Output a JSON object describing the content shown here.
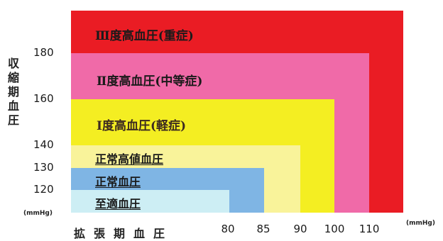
{
  "chart_data": {
    "type": "heatmap",
    "title": "",
    "ylabel": "収縮期血圧",
    "xlabel": "拡張期血圧",
    "y_unit": "(mmHg)",
    "x_unit": "(mmHg)",
    "y_ticks": [
      120,
      130,
      140,
      160,
      180
    ],
    "x_ticks": [
      80,
      85,
      90,
      100,
      110
    ],
    "categories": [
      {
        "name": "III度高血圧(重症)",
        "display": "Ⅲ度高血圧(重症)",
        "systolic_min": 180,
        "diastolic_min": 110,
        "color": "#ea1c24",
        "label_color": "#1a1a1a"
      },
      {
        "name": "II度高血圧(中等症)",
        "display": "Ⅱ度高血圧(中等症)",
        "systolic_max": 179,
        "diastolic_max": 109,
        "color": "#f06aa8",
        "label_color": "#1a1a1a"
      },
      {
        "name": "I度高血圧(軽症)",
        "display": "Ⅰ度高血圧(軽症)",
        "systolic_max": 159,
        "diastolic_max": 99,
        "color": "#f4ee22",
        "label_color": "#3c2a20"
      },
      {
        "name": "正常高値血圧",
        "display": "正常高値血圧",
        "systolic_max": 139,
        "diastolic_max": 89,
        "color": "#f9f39a",
        "label_color": "#1a1a1a"
      },
      {
        "name": "正常血圧",
        "display": "正常血圧",
        "systolic_max": 129,
        "diastolic_max": 84,
        "color": "#7fb5e4",
        "label_color": "#1a1a1a"
      },
      {
        "name": "至適血圧",
        "display": "至適血圧",
        "systolic_max": 119,
        "diastolic_max": 79,
        "color": "#cdeef4",
        "label_color": "#1a1a1a"
      }
    ]
  }
}
